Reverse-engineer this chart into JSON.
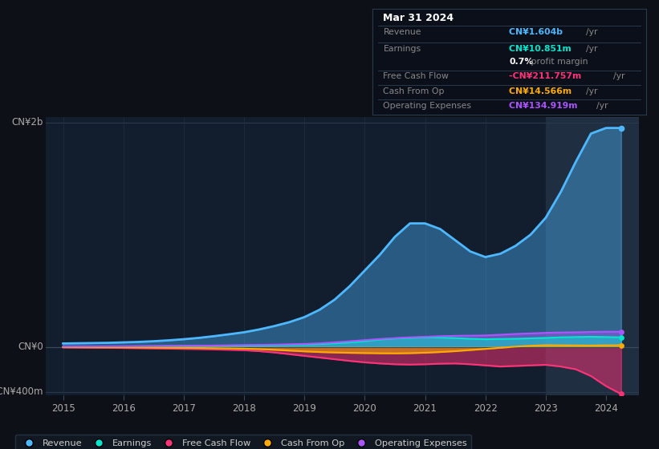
{
  "bg_color": "#0d1117",
  "chart_bg_color": "#121d2e",
  "title": "Mar 31 2024",
  "ylabel_top": "CN¥2b",
  "ylabel_zero": "CN¥0",
  "ylabel_neg": "-CN¥400m",
  "revenue_color": "#4db8ff",
  "earnings_color": "#00e5cc",
  "free_cash_flow_color": "#ff3377",
  "cash_from_op_color": "#ffaa00",
  "operating_expenses_color": "#aa55ff",
  "info_box": {
    "date": "Mar 31 2024",
    "revenue_label": "Revenue",
    "revenue_value": "CN¥1.604b",
    "revenue_color": "#4db8ff",
    "earnings_label": "Earnings",
    "earnings_value": "CN¥10.851m",
    "earnings_color": "#00e5cc",
    "margin_value": "0.7%",
    "margin_text": " profit margin",
    "free_cash_label": "Free Cash Flow",
    "free_cash_value": "-CN¥211.757m",
    "free_cash_color": "#ff3377",
    "cash_op_label": "Cash From Op",
    "cash_op_value": "CN¥14.566m",
    "cash_op_color": "#ffaa00",
    "op_exp_label": "Operating Expenses",
    "op_exp_value": "CN¥134.919m",
    "op_exp_color": "#aa55ff"
  },
  "legend": [
    {
      "label": "Revenue",
      "color": "#4db8ff"
    },
    {
      "label": "Earnings",
      "color": "#00e5cc"
    },
    {
      "label": "Free Cash Flow",
      "color": "#ff3377"
    },
    {
      "label": "Cash From Op",
      "color": "#ffaa00"
    },
    {
      "label": "Operating Expenses",
      "color": "#aa55ff"
    }
  ]
}
